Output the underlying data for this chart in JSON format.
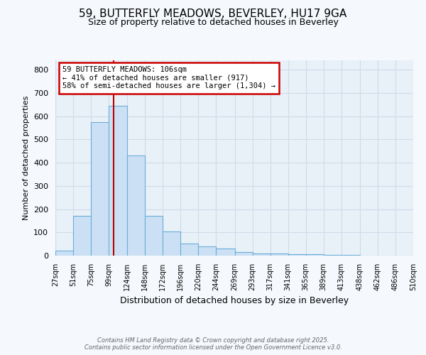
{
  "title1": "59, BUTTERFLY MEADOWS, BEVERLEY, HU17 9GA",
  "title2": "Size of property relative to detached houses in Beverley",
  "xlabel": "Distribution of detached houses by size in Beverley",
  "ylabel": "Number of detached properties",
  "bin_edges": [
    27,
    51,
    75,
    99,
    124,
    148,
    172,
    196,
    220,
    244,
    269,
    293,
    317,
    341,
    365,
    389,
    413,
    438,
    462,
    486,
    510
  ],
  "bar_heights": [
    20,
    170,
    575,
    645,
    430,
    170,
    103,
    52,
    40,
    32,
    14,
    9,
    9,
    7,
    5,
    3,
    2,
    0,
    0,
    0,
    5
  ],
  "bar_facecolor": "#cce0f5",
  "bar_edgecolor": "#6aaed6",
  "grid_color": "#d0dce8",
  "bg_color": "#e8f0f8",
  "fig_facecolor": "#f5f8fc",
  "property_line_x": 106,
  "property_line_color": "#bb0000",
  "annotation_text": "59 BUTTERFLY MEADOWS: 106sqm\n← 41% of detached houses are smaller (917)\n58% of semi-detached houses are larger (1,304) →",
  "annotation_box_edgecolor": "#cc0000",
  "yticks": [
    0,
    100,
    200,
    300,
    400,
    500,
    600,
    700,
    800
  ],
  "xtick_labels": [
    "27sqm",
    "51sqm",
    "75sqm",
    "99sqm",
    "124sqm",
    "148sqm",
    "172sqm",
    "196sqm",
    "220sqm",
    "244sqm",
    "269sqm",
    "293sqm",
    "317sqm",
    "341sqm",
    "365sqm",
    "389sqm",
    "413sqm",
    "438sqm",
    "462sqm",
    "486sqm",
    "510sqm"
  ],
  "footer_text": "Contains HM Land Registry data © Crown copyright and database right 2025.\nContains public sector information licensed under the Open Government Licence v3.0.",
  "ylim": [
    0,
    840
  ]
}
